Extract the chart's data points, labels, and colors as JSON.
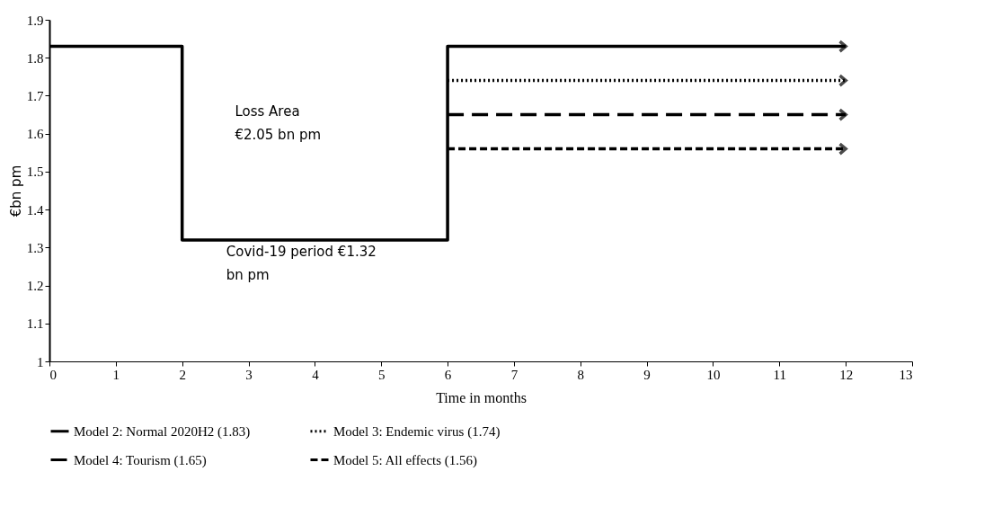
{
  "chart_data": {
    "type": "line",
    "xlabel": "Time in months",
    "ylabel": "€bn pm",
    "xlim": [
      0,
      13
    ],
    "xticks": [
      0,
      1,
      2,
      3,
      4,
      5,
      6,
      7,
      8,
      9,
      10,
      11,
      12,
      13
    ],
    "ylim": [
      1,
      1.9
    ],
    "yticks": [
      1,
      1.1,
      1.2,
      1.3,
      1.4,
      1.5,
      1.6,
      1.7,
      1.8,
      1.9
    ],
    "grid": false,
    "legend": "bottom",
    "series": [
      {
        "name": "Model 2: Normal 2020H2 (1.83)",
        "type": "step",
        "color": "#000000",
        "line_style": "solid",
        "x": [
          0,
          2,
          6,
          12
        ],
        "values": [
          1.83,
          1.32,
          1.83,
          1.83
        ]
      },
      {
        "name": "Model 3: Endemic virus (1.74)",
        "color": "#000000",
        "line_style": "dotted",
        "x": [
          6,
          12
        ],
        "values": [
          1.74,
          1.74
        ]
      },
      {
        "name": "Model 4: Tourism (1.65)",
        "color": "#000000",
        "line_style": "dashed",
        "x": [
          6,
          12
        ],
        "values": [
          1.65,
          1.65
        ]
      },
      {
        "name": "Model 5: All effects (1.56)",
        "color": "#000000",
        "line_style": "shortdash",
        "x": [
          6,
          12
        ],
        "values": [
          1.56,
          1.56
        ]
      }
    ],
    "annotations": [
      "Loss Area\n€2.05 bn pm",
      "Covid-19 period €1.32\nbn pm"
    ]
  }
}
